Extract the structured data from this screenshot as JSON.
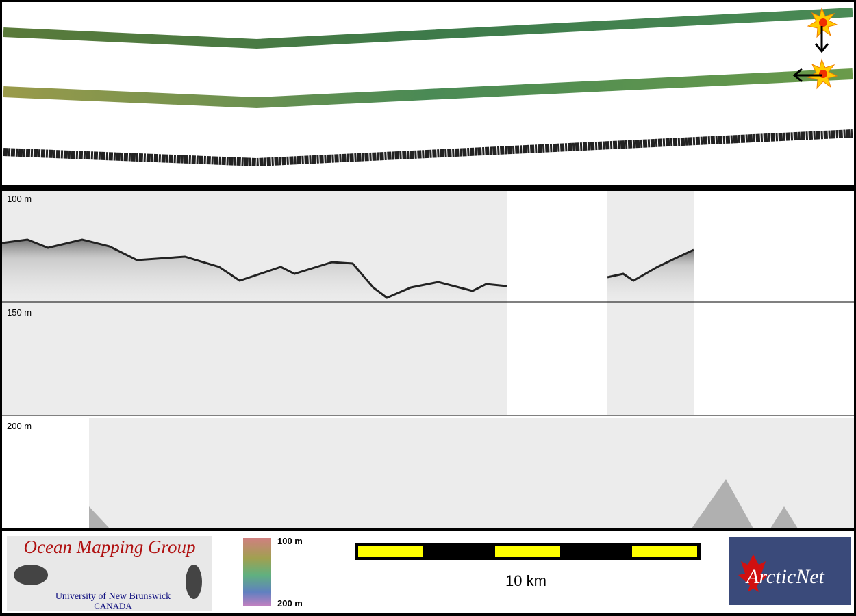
{
  "depth_labels": [
    "100 m",
    "150 m",
    "200 m"
  ],
  "logo": {
    "title": "Ocean Mapping Group",
    "subtitle": "University of New Brunswick",
    "country": "CANADA"
  },
  "color_scale": {
    "top": "100 m",
    "bottom": "200 m"
  },
  "scale_bar": {
    "label": "10 km"
  },
  "partner_logo": {
    "text": "ArcticNet"
  }
}
